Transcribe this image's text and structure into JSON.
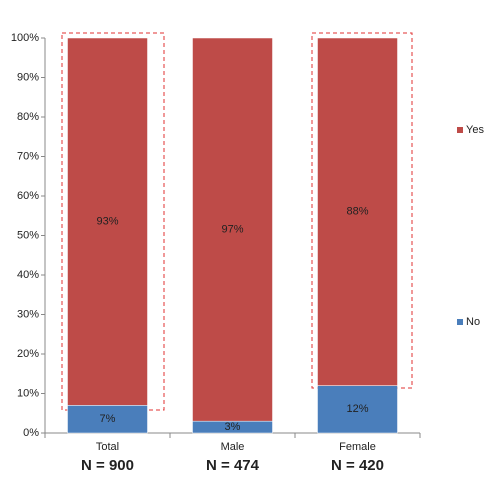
{
  "chart_data": {
    "type": "stacked_bar",
    "categories": [
      "Total",
      "Male",
      "Female"
    ],
    "category_notes": [
      "N = 900",
      "N = 474",
      "N = 420"
    ],
    "series": [
      {
        "name": "No",
        "color": "#4a7ebb",
        "values": [
          7,
          3,
          12
        ],
        "value_labels": [
          "7%",
          "3%",
          "12%"
        ]
      },
      {
        "name": "Yes",
        "color": "#be4b48",
        "values": [
          93,
          97,
          88
        ],
        "value_labels": [
          "93%",
          "97%",
          "88%"
        ]
      }
    ],
    "ylim": [
      0,
      100
    ],
    "yticks": [
      {
        "value": 0,
        "label": "0%"
      },
      {
        "value": 10,
        "label": "10%"
      },
      {
        "value": 20,
        "label": "20%"
      },
      {
        "value": 30,
        "label": "30%"
      },
      {
        "value": 40,
        "label": "40%"
      },
      {
        "value": 50,
        "label": "50%"
      },
      {
        "value": 60,
        "label": "60%"
      },
      {
        "value": 70,
        "label": "70%"
      },
      {
        "value": 80,
        "label": "80%"
      },
      {
        "value": 90,
        "label": "90%"
      },
      {
        "value": 100,
        "label": "100%"
      }
    ],
    "grid": false,
    "legend": "right"
  }
}
